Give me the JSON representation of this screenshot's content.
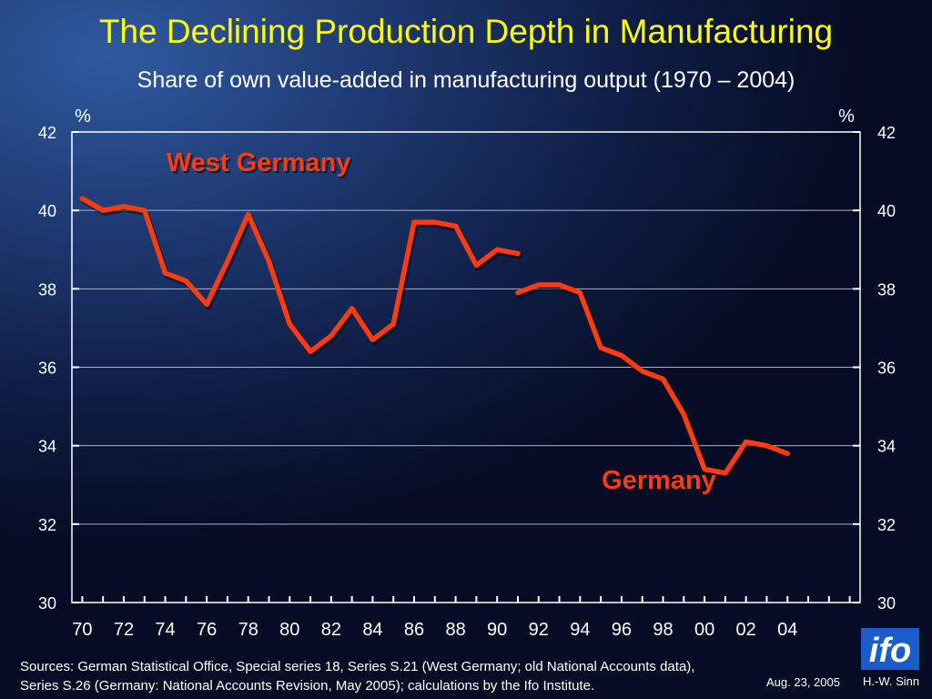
{
  "title": "The Declining Production Depth in Manufacturing",
  "subtitle": "Share of own value-added in manufacturing output (1970 – 2004)",
  "footer": {
    "line1": "Sources: German Statistical Office, Special series 18, Series S.21 (West Germany; old National Accounts data),",
    "line2": "Series S.26 (Germany: National Accounts Revision, May 2005); calculations by the Ifo Institute.",
    "date": "Aug. 23, 2005",
    "author": "H.-W. Sinn",
    "logo_text": "ifo"
  },
  "chart_data": {
    "type": "line",
    "ylim": [
      30,
      42
    ],
    "xlim": [
      1969.5,
      2007.5
    ],
    "y_ticks": [
      30,
      32,
      34,
      36,
      38,
      40,
      42
    ],
    "y_unit_left": "%",
    "y_unit_right": "%",
    "x_tick_labels": [
      {
        "x": 1970,
        "label": "70"
      },
      {
        "x": 1972,
        "label": "72"
      },
      {
        "x": 1974,
        "label": "74"
      },
      {
        "x": 1976,
        "label": "76"
      },
      {
        "x": 1978,
        "label": "78"
      },
      {
        "x": 1980,
        "label": "80"
      },
      {
        "x": 1982,
        "label": "82"
      },
      {
        "x": 1984,
        "label": "84"
      },
      {
        "x": 1986,
        "label": "86"
      },
      {
        "x": 1988,
        "label": "88"
      },
      {
        "x": 1990,
        "label": "90"
      },
      {
        "x": 1992,
        "label": "92"
      },
      {
        "x": 1994,
        "label": "94"
      },
      {
        "x": 1996,
        "label": "96"
      },
      {
        "x": 1998,
        "label": "98"
      },
      {
        "x": 2000,
        "label": "00"
      },
      {
        "x": 2002,
        "label": "02"
      },
      {
        "x": 2004,
        "label": "04"
      }
    ],
    "grid": true,
    "line_color": "#ff3b10",
    "series": [
      {
        "name": "West Germany",
        "x": [
          1970,
          1971,
          1972,
          1973,
          1974,
          1975,
          1976,
          1977,
          1978,
          1979,
          1980,
          1981,
          1982,
          1983,
          1984,
          1985,
          1986,
          1987,
          1988,
          1989,
          1990,
          1991
        ],
        "values": [
          40.3,
          40.0,
          40.1,
          40.0,
          38.4,
          38.2,
          37.6,
          38.7,
          39.9,
          38.7,
          37.1,
          36.4,
          36.8,
          37.5,
          36.7,
          37.1,
          39.7,
          39.7,
          39.6,
          38.6,
          39.0,
          38.9
        ]
      },
      {
        "name": "Germany",
        "x": [
          1991,
          1992,
          1993,
          1994,
          1995,
          1996,
          1997,
          1998,
          1999,
          2000,
          2001,
          2002,
          2003,
          2004
        ],
        "values": [
          37.9,
          38.1,
          38.1,
          37.9,
          36.5,
          36.3,
          35.9,
          35.7,
          34.8,
          33.4,
          33.3,
          34.1,
          34.0,
          33.8
        ]
      }
    ]
  }
}
